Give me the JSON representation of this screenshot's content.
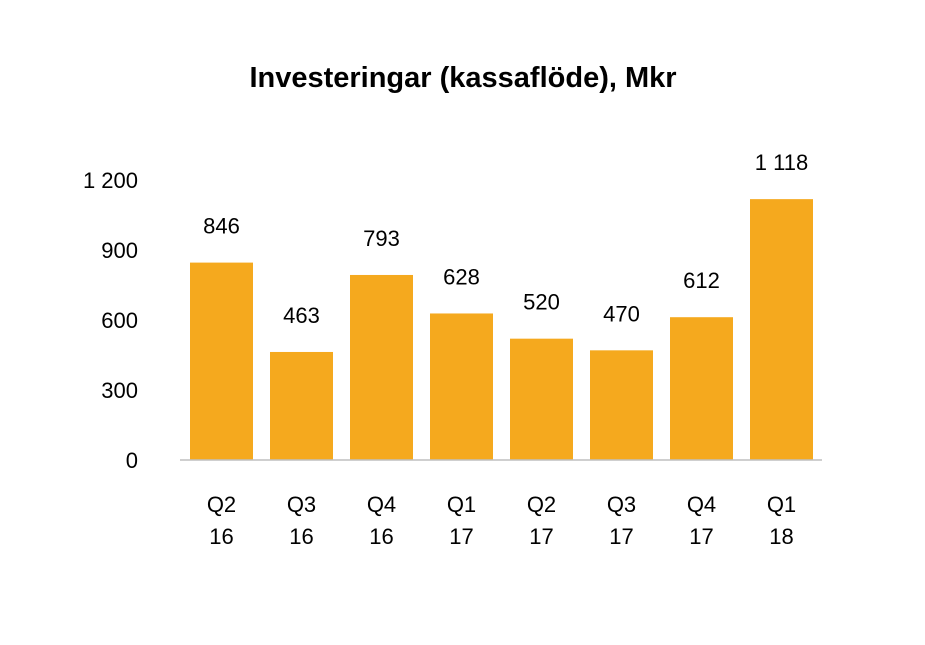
{
  "chart_data": {
    "type": "bar",
    "title": "Investeringar (kassaflöde), Mkr",
    "categories": [
      [
        "Q2",
        "16"
      ],
      [
        "Q3",
        "16"
      ],
      [
        "Q4",
        "16"
      ],
      [
        "Q1",
        "17"
      ],
      [
        "Q2",
        "17"
      ],
      [
        "Q3",
        "17"
      ],
      [
        "Q4",
        "17"
      ],
      [
        "Q1",
        "18"
      ]
    ],
    "values": [
      846,
      463,
      793,
      628,
      520,
      470,
      612,
      1118
    ],
    "value_labels": [
      "846",
      "463",
      "793",
      "628",
      "520",
      "470",
      "612",
      "1 118"
    ],
    "yticks": [
      0,
      300,
      600,
      900,
      1200
    ],
    "ytick_labels": [
      "0",
      "300",
      "600",
      "900",
      "1 200"
    ],
    "ylim": [
      0,
      1200
    ],
    "xlabel": "",
    "ylabel": "",
    "grid": false,
    "bar_color": "#F5A91E",
    "axis_color": "#BFBFBF"
  }
}
